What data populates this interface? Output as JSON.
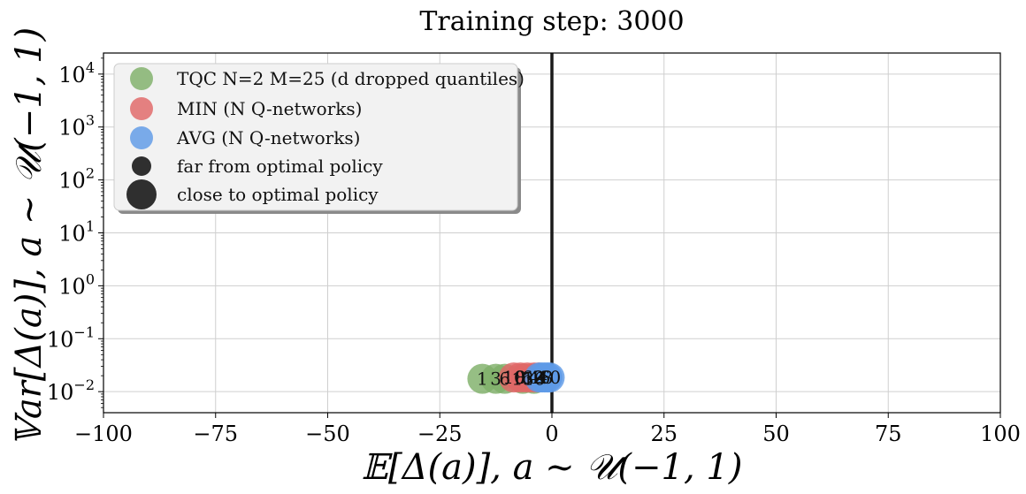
{
  "chart_data": {
    "type": "scatter",
    "title": "Training step: 3000",
    "xlabel": "𝔼[Δ(a)],    a ~ 𝒰(−1, 1)",
    "ylabel": "𝕍ar[Δ(a)],    a ~ 𝒰(−1, 1)",
    "xlim": [
      -100,
      100
    ],
    "ylim": [
      0.004,
      25000
    ],
    "yscale": "log",
    "grid": true,
    "legend_position": "top-left",
    "x_ticks": [
      -100,
      -75,
      -50,
      -25,
      0,
      25,
      50,
      75,
      100
    ],
    "x_tick_labels": [
      "−100",
      "−75",
      "−50",
      "−25",
      "0",
      "25",
      "50",
      "75",
      "100"
    ],
    "y_ticks": [
      {
        "value": 0.01,
        "base": "10",
        "exp": "−2"
      },
      {
        "value": 0.1,
        "base": "10",
        "exp": "−1"
      },
      {
        "value": 1,
        "base": "10",
        "exp": "0"
      },
      {
        "value": 10,
        "base": "10",
        "exp": "1"
      },
      {
        "value": 100,
        "base": "10",
        "exp": "2"
      },
      {
        "value": 1000,
        "base": "10",
        "exp": "3"
      },
      {
        "value": 10000,
        "base": "10",
        "exp": "4"
      }
    ],
    "vertical_reference_line_x": 0,
    "series": [
      {
        "name": "TQC N=2 M=25 (d dropped quantiles)",
        "color": "#7fb069",
        "points": [
          {
            "label": "1",
            "x": -15.5,
            "y": 0.0175
          },
          {
            "label": "3",
            "x": -12.5,
            "y": 0.0175
          },
          {
            "label": "6",
            "x": -10.5,
            "y": 0.0175
          },
          {
            "label": "13",
            "x": -6.5,
            "y": 0.0175
          },
          {
            "label": "16",
            "x": -4.0,
            "y": 0.0175
          }
        ]
      },
      {
        "name": "MIN (N Q-networks)",
        "color": "#e06666",
        "points": [
          {
            "label": "10",
            "x": -8.5,
            "y": 0.0185
          },
          {
            "label": "8",
            "x": -7.0,
            "y": 0.0185
          },
          {
            "label": "6",
            "x": -5.5,
            "y": 0.0185
          },
          {
            "label": "4",
            "x": -4.0,
            "y": 0.0185
          },
          {
            "label": "2",
            "x": -3.0,
            "y": 0.0185
          }
        ]
      },
      {
        "name": "AVG (N Q-networks)",
        "color": "#5e9ae6",
        "points": [
          {
            "label": "2",
            "x": -2.8,
            "y": 0.0185
          },
          {
            "label": "4",
            "x": -2.2,
            "y": 0.0185
          },
          {
            "label": "6",
            "x": -1.6,
            "y": 0.0185
          },
          {
            "label": "8",
            "x": -1.0,
            "y": 0.0185
          },
          {
            "label": "10",
            "x": -0.5,
            "y": 0.0185
          }
        ]
      }
    ],
    "legend": [
      {
        "label": "TQC N=2 M=25 (d dropped quantiles)",
        "color": "#7fb069",
        "kind": "series"
      },
      {
        "label": "MIN (N Q-networks)",
        "color": "#e06666",
        "kind": "series"
      },
      {
        "label": "AVG (N Q-networks)",
        "color": "#5e9ae6",
        "kind": "series"
      },
      {
        "label": "far from optimal policy",
        "color": "#1a1a1a",
        "kind": "size-small"
      },
      {
        "label": "close to optimal policy",
        "color": "#1a1a1a",
        "kind": "size-large"
      }
    ]
  }
}
